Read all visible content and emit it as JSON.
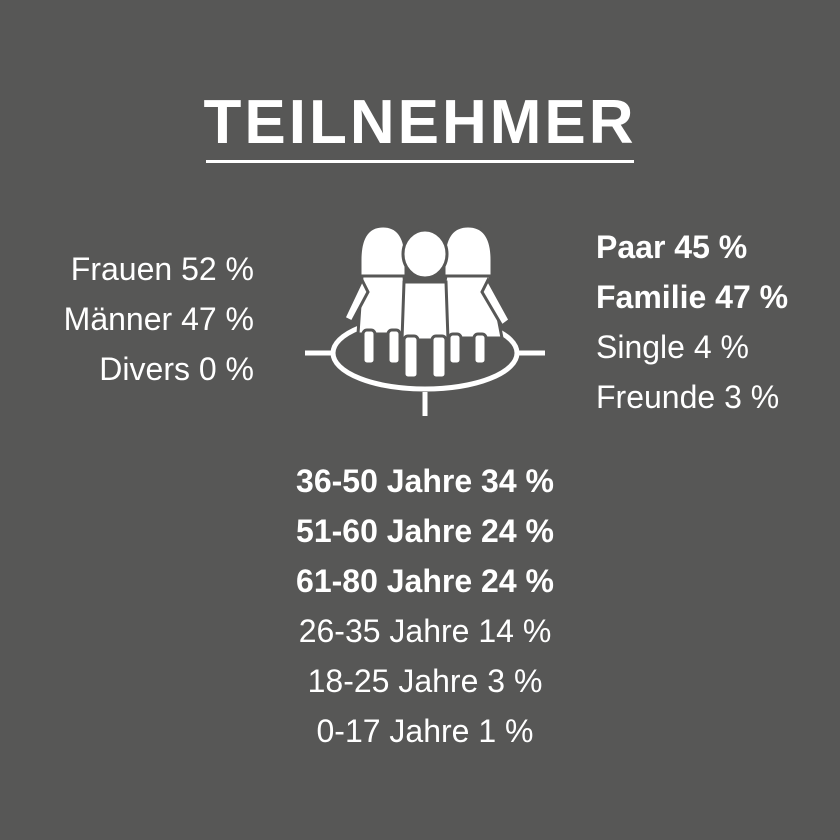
{
  "title": "TEILNEHMER",
  "gender": [
    {
      "label": "Frauen 52 %"
    },
    {
      "label": "Männer 47 %"
    },
    {
      "label": "Divers 0 %"
    }
  ],
  "group_type": [
    {
      "label": "Paar 45 %",
      "emphasized": true
    },
    {
      "label": "Familie 47 %",
      "emphasized": true
    },
    {
      "label": "Single 4 %",
      "emphasized": false
    },
    {
      "label": "Freunde 3 %",
      "emphasized": false
    }
  ],
  "age": [
    {
      "label": "36-50 Jahre 34 %",
      "emphasized": true
    },
    {
      "label": "51-60 Jahre 24 %",
      "emphasized": true
    },
    {
      "label": "61-80 Jahre 24 %",
      "emphasized": true
    },
    {
      "label": "26-35 Jahre 14 %",
      "emphasized": false
    },
    {
      "label": "18-25 Jahre 3 %",
      "emphasized": false
    },
    {
      "label": "0-17 Jahre 1 %",
      "emphasized": false
    }
  ],
  "icon": "people-group-icon",
  "colors": {
    "background": "#575756",
    "foreground": "#ffffff"
  }
}
